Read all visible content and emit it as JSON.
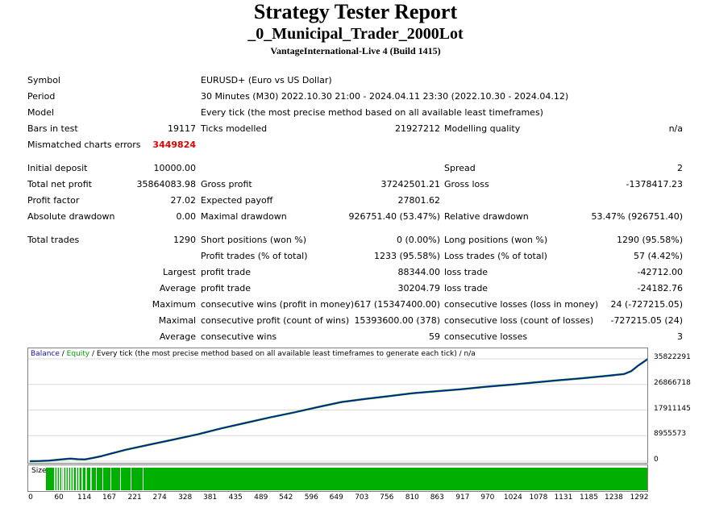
{
  "header": {
    "title": "Strategy Tester Report",
    "ea_name": "_0_Municipal_Trader_2000Lot",
    "server": "VantageInternational-Live 4 (Build 1415)"
  },
  "info": {
    "symbol_label": "Symbol",
    "symbol_value": "EURUSD+ (Euro vs US Dollar)",
    "period_label": "Period",
    "period_value": "30 Minutes (M30) 2022.10.30 21:00 - 2024.04.11 23:30 (2022.10.30 - 2024.04.12)",
    "model_label": "Model",
    "model_value": "Every tick (the most precise method based on all available least timeframes)",
    "bars_label": "Bars in test",
    "bars_value": "19117",
    "ticks_label": "Ticks modelled",
    "ticks_value": "21927212",
    "quality_label": "Modelling quality",
    "quality_value": "n/a",
    "mismatch_label": "Mismatched charts errors",
    "mismatch_value": "3449824"
  },
  "results": {
    "initial_deposit_label": "Initial deposit",
    "initial_deposit": "10000.00",
    "spread_label": "Spread",
    "spread": "2",
    "net_profit_label": "Total net profit",
    "net_profit": "35864083.98",
    "gross_profit_label": "Gross profit",
    "gross_profit": "37242501.21",
    "gross_loss_label": "Gross loss",
    "gross_loss": "-1378417.23",
    "profit_factor_label": "Profit factor",
    "profit_factor": "27.02",
    "expected_payoff_label": "Expected payoff",
    "expected_payoff": "27801.62",
    "abs_dd_label": "Absolute drawdown",
    "abs_dd": "0.00",
    "max_dd_label": "Maximal drawdown",
    "max_dd": "926751.40 (53.47%)",
    "rel_dd_label": "Relative drawdown",
    "rel_dd": "53.47% (926751.40)"
  },
  "trades": {
    "total_label": "Total trades",
    "total": "1290",
    "short_label": "Short positions (won %)",
    "short": "0 (0.00%)",
    "long_label": "Long positions (won %)",
    "long": "1290 (95.58%)",
    "profit_trades_label": "Profit trades (% of total)",
    "profit_trades": "1233 (95.58%)",
    "loss_trades_label": "Loss trades (% of total)",
    "loss_trades": "57 (4.42%)",
    "largest_label": "Largest",
    "largest_profit_label": "profit trade",
    "largest_profit": "88344.00",
    "largest_loss_label": "loss trade",
    "largest_loss": "-42712.00",
    "average_label": "Average",
    "average_profit_label": "profit trade",
    "average_profit": "30204.79",
    "average_loss_label": "loss trade",
    "average_loss": "-24182.76",
    "maximum_label": "Maximum",
    "max_cons_wins_label": "consecutive wins (profit in money)",
    "max_cons_wins": "617 (15347400.00)",
    "max_cons_losses_label": "consecutive losses (loss in money)",
    "max_cons_losses": "24 (-727215.05)",
    "maximal_label": "Maximal",
    "maximal_cons_profit_label": "consecutive profit (count of wins)",
    "maximal_cons_profit": "15393600.00 (378)",
    "maximal_cons_loss_label": "consecutive loss (count of losses)",
    "maximal_cons_loss": "-727215.05 (24)",
    "average2_label": "Average",
    "avg_cons_wins_label": "consecutive wins",
    "avg_cons_wins": "59",
    "avg_cons_losses_label": "consecutive losses",
    "avg_cons_losses": "3"
  },
  "chart_data": {
    "type": "line",
    "legend": {
      "balance": "Balance",
      "sep1": " / ",
      "equity": "Equity",
      "rest": " / Every tick (the most precise method based on all available least timeframes to generate each tick) / n/a"
    },
    "colors": {
      "balance": "#1010b0",
      "equity": "#00a000",
      "size": "#00b000"
    },
    "y_ticks": [
      "35822291",
      "26866718",
      "17911145",
      "8955573",
      "0"
    ],
    "y_tick_values": [
      35822291,
      26866718,
      17911145,
      8955573,
      0
    ],
    "ylim": [
      0,
      35822291
    ],
    "x_ticks": [
      "0",
      "60",
      "114",
      "167",
      "221",
      "274",
      "328",
      "381",
      "435",
      "489",
      "542",
      "596",
      "649",
      "703",
      "756",
      "810",
      "863",
      "917",
      "970",
      "1024",
      "1078",
      "1131",
      "1185",
      "1238",
      "1292"
    ],
    "xlim": [
      0,
      1292
    ],
    "series": [
      {
        "name": "Balance",
        "x": [
          0,
          20,
          40,
          55,
          70,
          85,
          100,
          115,
          130,
          150,
          170,
          200,
          250,
          300,
          350,
          400,
          450,
          500,
          550,
          600,
          650,
          700,
          750,
          800,
          850,
          900,
          950,
          1000,
          1050,
          1100,
          1150,
          1200,
          1240,
          1255,
          1270,
          1290
        ],
        "values": [
          10000,
          60000,
          200000,
          450000,
          700000,
          900000,
          700000,
          650000,
          1100000,
          1800000,
          2700000,
          4000000,
          5800000,
          7600000,
          9400000,
          11500000,
          13400000,
          15300000,
          17000000,
          18900000,
          20700000,
          21800000,
          22800000,
          23800000,
          24500000,
          25200000,
          26000000,
          26700000,
          27500000,
          28300000,
          29000000,
          29800000,
          30500000,
          31500000,
          33500000,
          35800000
        ]
      }
    ],
    "size_label": "Size"
  }
}
